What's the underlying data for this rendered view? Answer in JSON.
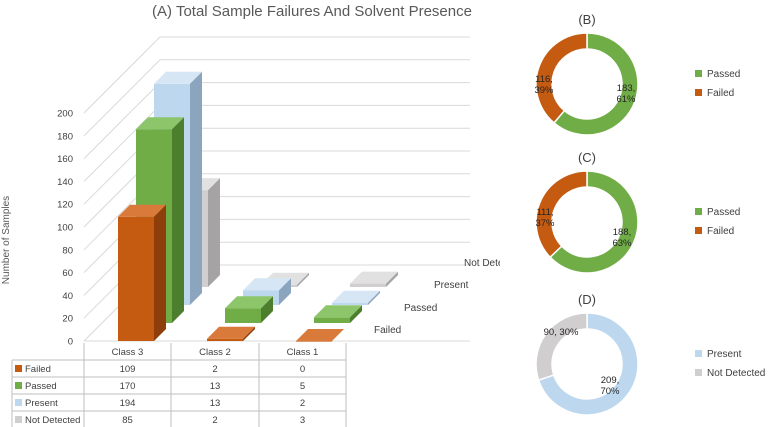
{
  "colors": {
    "failed": "#C55A11",
    "failed_side": "#8E3E0A",
    "failed_top": "#D97A3A",
    "passed": "#70AD47",
    "passed_side": "#4C7E2E",
    "passed_top": "#8CC56A",
    "present": "#BDD7EE",
    "present_side": "#8CA5BE",
    "present_top": "#D6E6F5",
    "not_detected": "#D0CECE",
    "not_detected_side": "#A5A3A3",
    "not_detected_top": "#E2E1E1",
    "axis": "#BFBFBF",
    "text": "#404040"
  },
  "chart_data": [
    {
      "type": "bar",
      "title": "(A) Total Sample Failures And Solvent Presence",
      "ylabel": "Number of Samples",
      "ylim": [
        0,
        200
      ],
      "yticks": [
        0,
        20,
        40,
        60,
        80,
        100,
        120,
        140,
        160,
        180,
        200
      ],
      "categories": [
        "Class 3",
        "Class 2",
        "Class 1"
      ],
      "series": [
        {
          "name": "Failed",
          "values": [
            109,
            2,
            0
          ]
        },
        {
          "name": "Passed",
          "values": [
            170,
            13,
            5
          ]
        },
        {
          "name": "Present",
          "values": [
            194,
            13,
            2
          ]
        },
        {
          "name": "Not Detected",
          "values": [
            85,
            2,
            3
          ]
        }
      ],
      "depth_labels": [
        "Not Detected",
        "Present",
        "Passed",
        "Failed"
      ],
      "table": true
    },
    {
      "type": "pie",
      "title": "(B)",
      "slices": [
        {
          "name": "Passed",
          "value": 183,
          "percent": "61%",
          "label_line1": "183,",
          "label_line2": "61%"
        },
        {
          "name": "Failed",
          "value": 116,
          "percent": "39%",
          "label_line1": "116,",
          "label_line2": "39%"
        }
      ],
      "legend": [
        "Passed",
        "Failed"
      ]
    },
    {
      "type": "pie",
      "title": "(C)",
      "slices": [
        {
          "name": "Passed",
          "value": 188,
          "percent": "63%",
          "label_line1": "188,",
          "label_line2": "63%"
        },
        {
          "name": "Failed",
          "value": 111,
          "percent": "37%",
          "label_line1": "111,",
          "label_line2": "37%"
        }
      ],
      "legend": [
        "Passed",
        "Failed"
      ]
    },
    {
      "type": "pie",
      "title": "(D)",
      "slices": [
        {
          "name": "Present",
          "value": 209,
          "percent": "70%",
          "label_line1": "209,",
          "label_line2": "70%"
        },
        {
          "name": "Not Detected",
          "value": 90,
          "percent": "30%",
          "label_line1": "90, 30%",
          "label_line2": ""
        }
      ],
      "legend": [
        "Present",
        "Not Detected"
      ]
    }
  ]
}
